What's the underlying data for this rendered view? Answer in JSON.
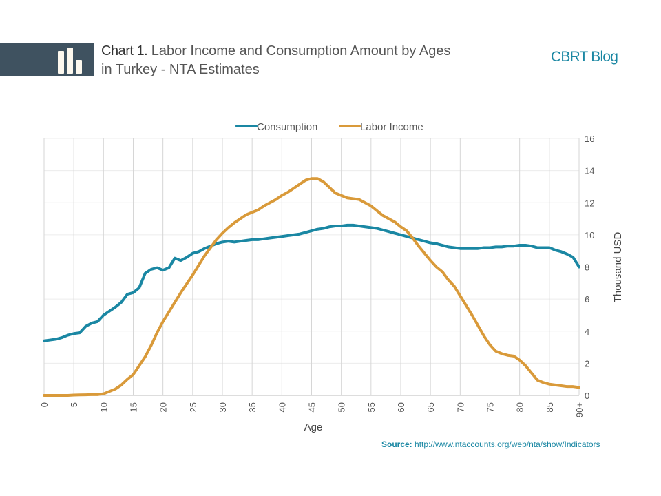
{
  "header": {
    "title_bold": "Chart 1.",
    "title_rest": "Labor Income and Consumption Amount by Ages",
    "title_line2": "in Turkey - NTA Estimates",
    "brand": "CBRT Blog",
    "icon": "bar-chart-icon"
  },
  "footer": {
    "source_label": "Source:",
    "source_url": "http://www.ntaccounts.org/web/nta/show/Indicators"
  },
  "colors": {
    "consumption": "#1a87a3",
    "labor_income": "#d99a3a"
  },
  "chart_data": {
    "type": "line",
    "title": "Labor Income and Consumption Amount by Ages in Turkey - NTA Estimates",
    "xlabel": "Age",
    "ylabel": "Thousand USD",
    "ylim": [
      0,
      16
    ],
    "xticks": [
      "0",
      "5",
      "10",
      "15",
      "20",
      "25",
      "30",
      "35",
      "40",
      "45",
      "50",
      "55",
      "60",
      "65",
      "70",
      "75",
      "80",
      "85",
      "90+"
    ],
    "yticks": [
      "0",
      "2",
      "4",
      "6",
      "8",
      "10",
      "12",
      "14",
      "16"
    ],
    "legend": "top",
    "grid": true,
    "x": [
      0,
      1,
      2,
      3,
      4,
      5,
      6,
      7,
      8,
      9,
      10,
      11,
      12,
      13,
      14,
      15,
      16,
      17,
      18,
      19,
      20,
      21,
      22,
      23,
      24,
      25,
      26,
      27,
      28,
      29,
      30,
      31,
      32,
      33,
      34,
      35,
      36,
      37,
      38,
      39,
      40,
      41,
      42,
      43,
      44,
      45,
      46,
      47,
      48,
      49,
      50,
      51,
      52,
      53,
      54,
      55,
      56,
      57,
      58,
      59,
      60,
      61,
      62,
      63,
      64,
      65,
      66,
      67,
      68,
      69,
      70,
      71,
      72,
      73,
      74,
      75,
      76,
      77,
      78,
      79,
      80,
      81,
      82,
      83,
      84,
      85,
      86,
      87,
      88,
      89,
      90
    ],
    "series": [
      {
        "name": "Consumption",
        "values": [
          3.4,
          3.45,
          3.5,
          3.6,
          3.75,
          3.85,
          3.9,
          4.3,
          4.5,
          4.6,
          5.0,
          5.25,
          5.5,
          5.8,
          6.3,
          6.4,
          6.7,
          7.6,
          7.85,
          7.95,
          7.8,
          7.95,
          8.55,
          8.4,
          8.6,
          8.85,
          8.95,
          9.15,
          9.3,
          9.45,
          9.55,
          9.6,
          9.55,
          9.6,
          9.65,
          9.7,
          9.7,
          9.75,
          9.8,
          9.85,
          9.9,
          9.95,
          10.0,
          10.05,
          10.15,
          10.25,
          10.35,
          10.4,
          10.5,
          10.55,
          10.55,
          10.6,
          10.6,
          10.55,
          10.5,
          10.45,
          10.4,
          10.3,
          10.2,
          10.1,
          10.0,
          9.9,
          9.8,
          9.7,
          9.6,
          9.5,
          9.45,
          9.35,
          9.25,
          9.2,
          9.15,
          9.15,
          9.15,
          9.15,
          9.2,
          9.2,
          9.25,
          9.25,
          9.3,
          9.3,
          9.35,
          9.35,
          9.3,
          9.2,
          9.2,
          9.2,
          9.05,
          8.95,
          8.8,
          8.6,
          8.0
        ]
      },
      {
        "name": "Labor Income",
        "values": [
          0,
          0,
          0,
          0,
          0,
          0.02,
          0.03,
          0.04,
          0.05,
          0.05,
          0.1,
          0.25,
          0.4,
          0.65,
          1.0,
          1.3,
          1.85,
          2.4,
          3.1,
          3.9,
          4.6,
          5.2,
          5.8,
          6.4,
          6.95,
          7.5,
          8.1,
          8.7,
          9.2,
          9.7,
          10.1,
          10.45,
          10.75,
          11.0,
          11.25,
          11.4,
          11.55,
          11.8,
          12.0,
          12.2,
          12.45,
          12.65,
          12.9,
          13.15,
          13.4,
          13.5,
          13.5,
          13.3,
          12.95,
          12.6,
          12.45,
          12.3,
          12.25,
          12.2,
          12.0,
          11.8,
          11.5,
          11.2,
          11.0,
          10.8,
          10.5,
          10.25,
          9.8,
          9.3,
          8.85,
          8.4,
          8.0,
          7.7,
          7.2,
          6.8,
          6.2,
          5.6,
          5.0,
          4.35,
          3.7,
          3.15,
          2.75,
          2.6,
          2.5,
          2.45,
          2.2,
          1.85,
          1.4,
          0.95,
          0.8,
          0.7,
          0.65,
          0.6,
          0.55,
          0.55,
          0.5
        ]
      }
    ]
  }
}
